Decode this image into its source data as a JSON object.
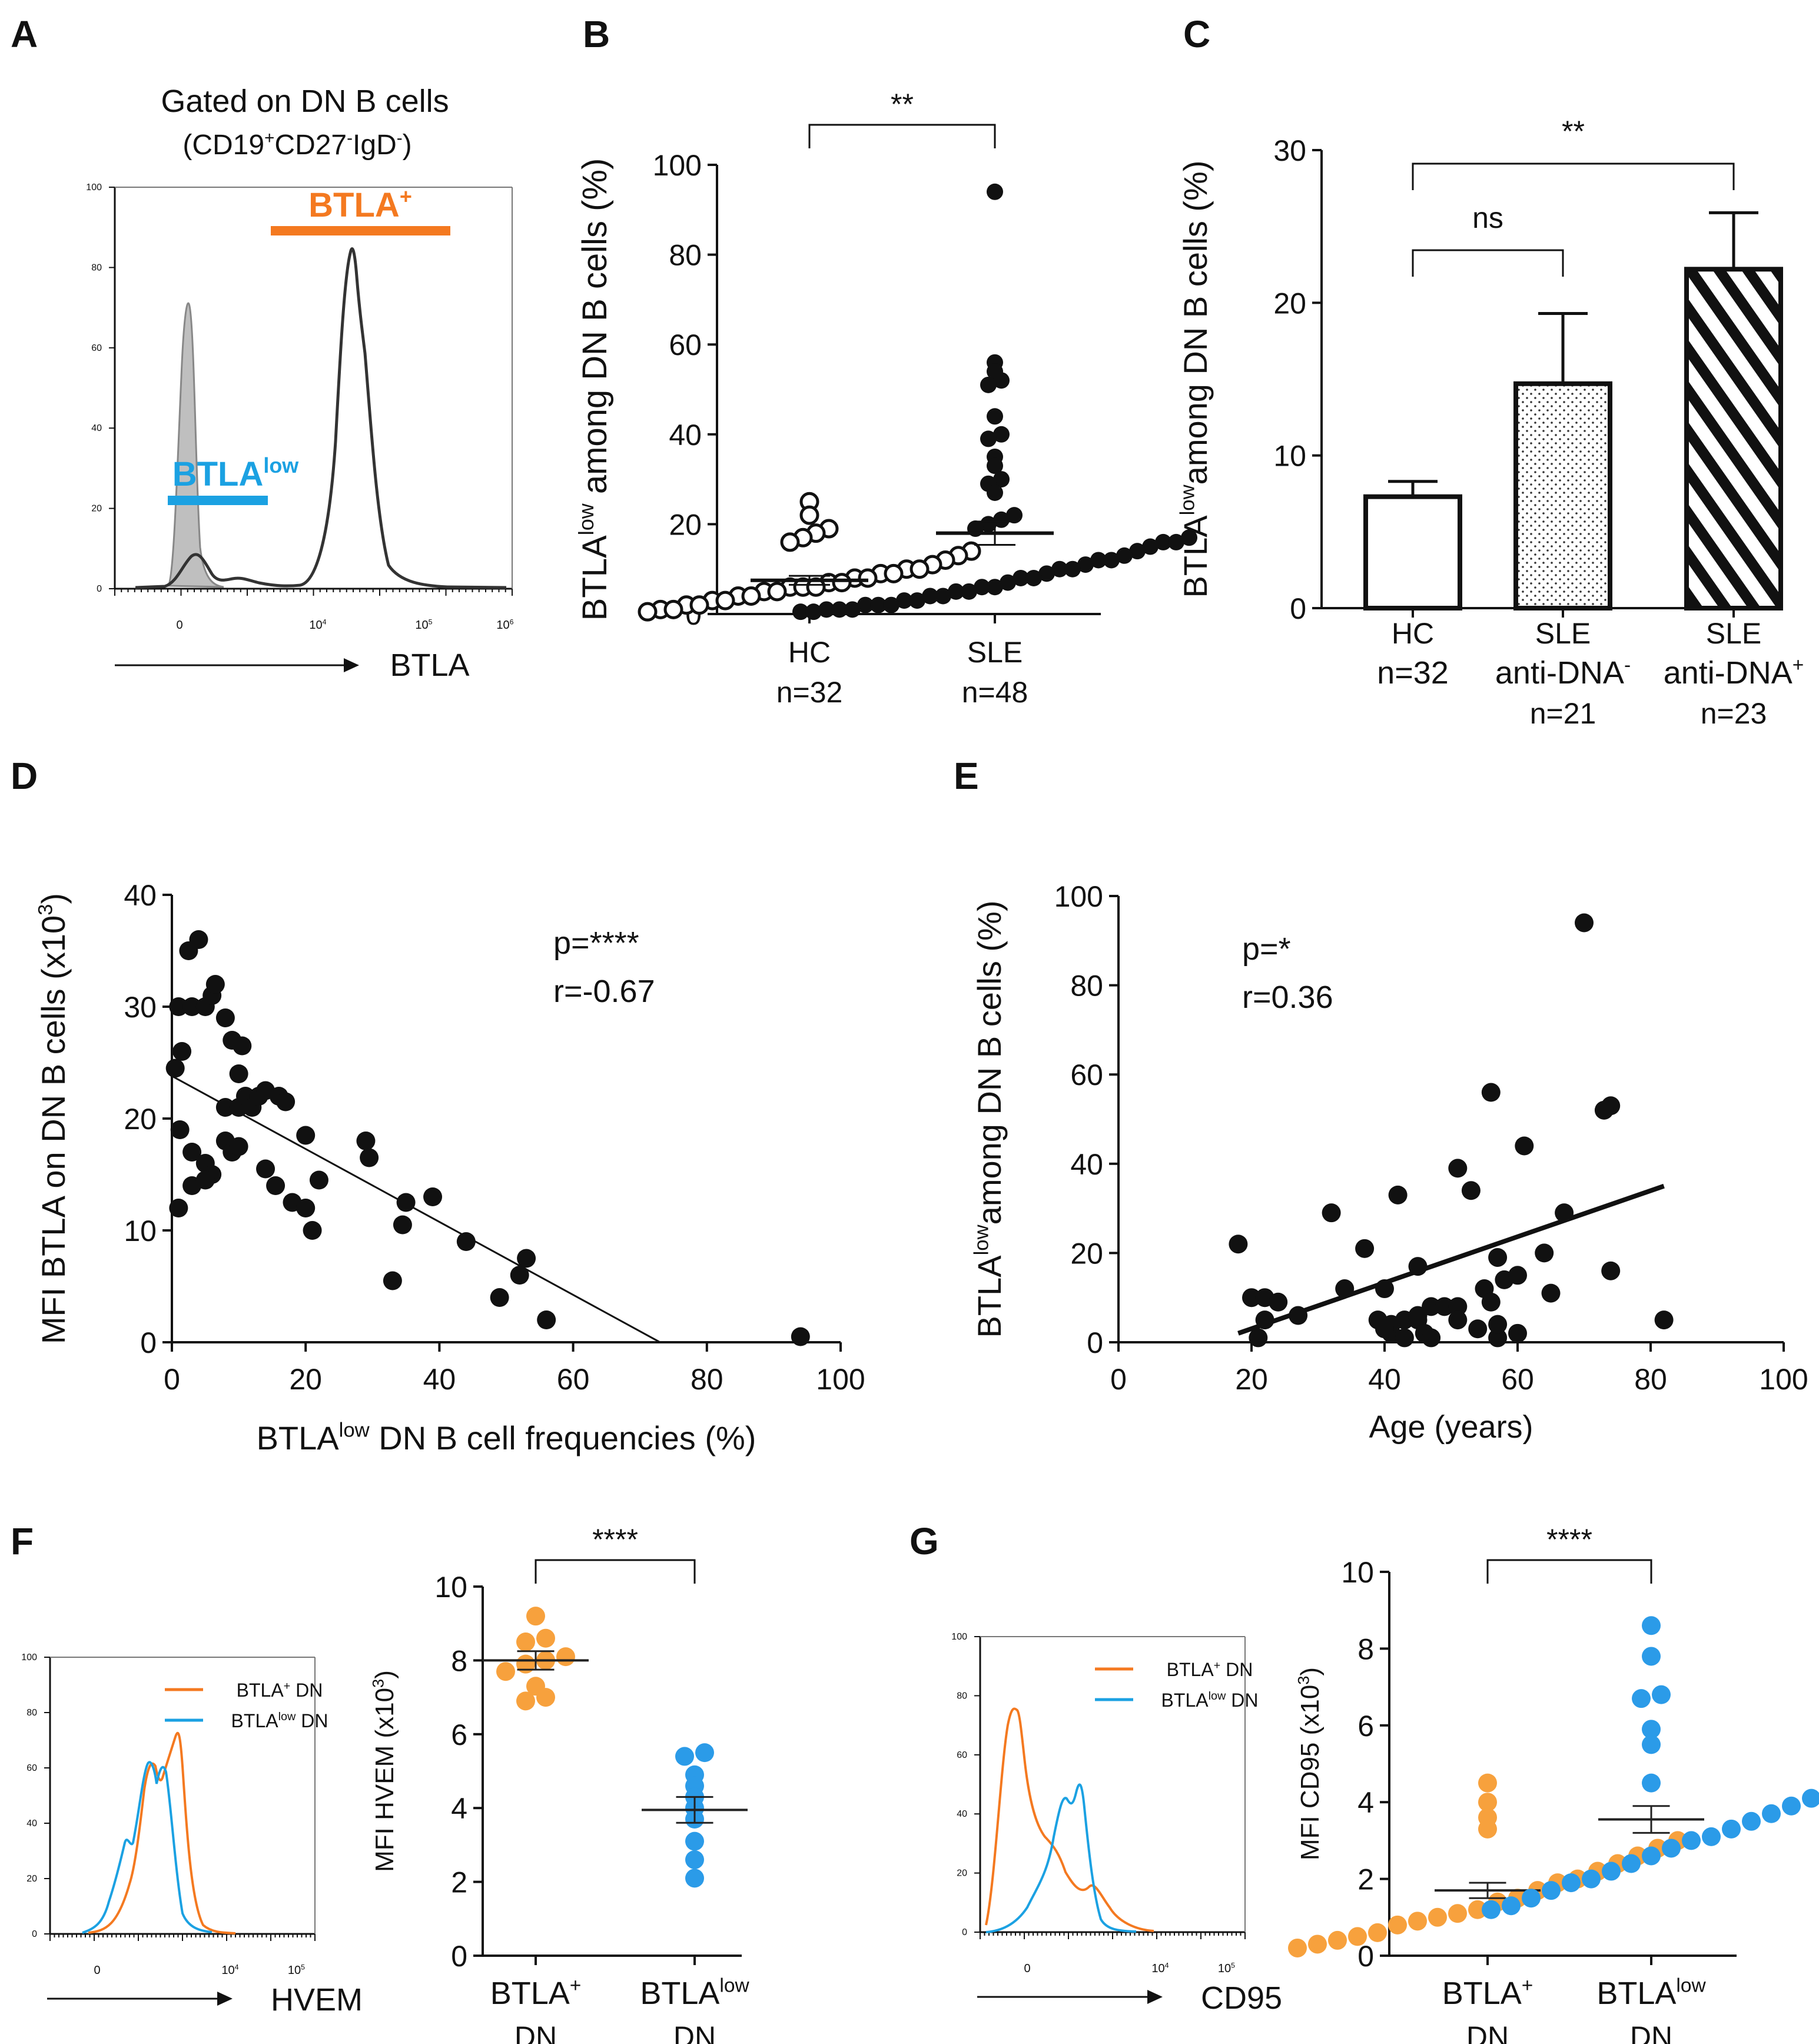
{
  "colors": {
    "orange": "#f47920",
    "blue": "#1ba1e2",
    "dot_orange": "#f7a13d",
    "dot_blue": "#2b9be8",
    "gray_fill": "#bfbfbf",
    "black": "#111111"
  },
  "chart_data": [
    {
      "panel": "A",
      "type": "histogram",
      "title_line1": "Gated on DN B cells",
      "title_line2": {
        "prefix": "(CD19",
        "sup1": "+",
        "mid1": "CD27",
        "sup2": "-",
        "mid2": "IgD",
        "sup3": "-",
        "suffix": ")"
      },
      "xlabel": "BTLA",
      "gates": [
        {
          "name": "BTLA+",
          "label": "BTLA",
          "sup": "+",
          "color": "#f47920"
        },
        {
          "name": "BTLAlow",
          "label": "BTLA",
          "sup": "low",
          "color": "#1ba1e2"
        }
      ],
      "y_ticks": [
        "0",
        "20",
        "40",
        "60",
        "80",
        "100"
      ],
      "x_ticks": [
        {
          "base": "0",
          "exp": ""
        },
        {
          "base": "10",
          "exp": "4"
        },
        {
          "base": "10",
          "exp": "5"
        },
        {
          "base": "10",
          "exp": "6"
        }
      ]
    },
    {
      "panel": "B",
      "type": "scatter",
      "ylabel": {
        "prefix": "BTLA",
        "sup": "low",
        "suffix": " among DN B cells (%)"
      },
      "ylim": [
        0,
        100
      ],
      "y_ticks": [
        "0",
        "20",
        "40",
        "60",
        "80",
        "100"
      ],
      "categories": [
        {
          "label": "HC",
          "n": "n=32",
          "mean": 7.5,
          "sem": 1.0,
          "values": [
            25,
            22,
            19,
            18,
            17,
            16,
            14,
            13,
            12,
            11,
            10,
            10,
            9,
            9,
            8,
            8,
            7,
            7,
            6,
            6,
            6,
            5,
            5,
            4,
            4,
            3,
            3,
            2,
            2,
            1,
            1,
            0.5
          ]
        },
        {
          "label": "SLE",
          "n": "n=48",
          "mean": 18,
          "sem": 2.6,
          "values": [
            94,
            56,
            54,
            52,
            51,
            44,
            40,
            39,
            35,
            33,
            30,
            29,
            27,
            22,
            21,
            20,
            19,
            17,
            16,
            16,
            15,
            14,
            13,
            12,
            12,
            11,
            10,
            10,
            9,
            8,
            8,
            7,
            6,
            6,
            5,
            5,
            4,
            4,
            3,
            3,
            2,
            2,
            2,
            1,
            1,
            1,
            0.5,
            0.5
          ]
        }
      ],
      "significance": "**"
    },
    {
      "panel": "C",
      "type": "bar",
      "ylabel": {
        "prefix": "BTLA",
        "sup": "low",
        "suffix": "among DN B cells (%)"
      },
      "ylim": [
        0,
        30
      ],
      "y_ticks": [
        "0",
        "10",
        "20",
        "30"
      ],
      "categories": [
        {
          "line1": "HC",
          "line2": "n=32",
          "line2sup": "",
          "line3": "",
          "value": 7.3,
          "err": 1.0,
          "fill": "open"
        },
        {
          "line1": "SLE",
          "line2": "anti-DNA",
          "line2sup": "-",
          "line3": "n=21",
          "value": 14.7,
          "err": 4.6,
          "fill": "dots"
        },
        {
          "line1": "SLE",
          "line2": "anti-DNA",
          "line2sup": "+",
          "line3": "n=23",
          "value": 22.2,
          "err": 3.7,
          "fill": "hatch"
        }
      ],
      "brackets": [
        {
          "from": 0,
          "to": 1,
          "label": "ns"
        },
        {
          "from": 0,
          "to": 2,
          "label": "**"
        }
      ]
    },
    {
      "panel": "D",
      "type": "scatter",
      "xlabel": {
        "prefix": "BTLA",
        "sup": "low",
        "suffix": " DN B cell frequencies (%)"
      },
      "ylabel": {
        "prefix": "MFI BTLA on DN B cells (x10",
        "sup": "3",
        "suffix": ")"
      },
      "xlim": [
        0,
        100
      ],
      "ylim": [
        0,
        40
      ],
      "x_ticks": [
        "0",
        "20",
        "40",
        "60",
        "80",
        "100"
      ],
      "y_ticks": [
        "0",
        "10",
        "20",
        "30",
        "40"
      ],
      "p_text": "p=****",
      "r_text": "r=-0.67",
      "fit": {
        "x0": 0,
        "y0": 23.8,
        "x1": 73,
        "y1": 0
      },
      "points": [
        [
          1,
          30
        ],
        [
          1.5,
          26
        ],
        [
          0.5,
          24.5
        ],
        [
          1.2,
          19
        ],
        [
          2.5,
          35
        ],
        [
          3,
          30
        ],
        [
          4,
          36
        ],
        [
          5,
          30
        ],
        [
          6,
          31
        ],
        [
          6.5,
          32
        ],
        [
          8,
          29
        ],
        [
          9,
          27
        ],
        [
          10.5,
          26.5
        ],
        [
          10,
          24
        ],
        [
          8,
          21
        ],
        [
          10,
          21
        ],
        [
          11,
          22
        ],
        [
          12,
          21
        ],
        [
          13,
          22
        ],
        [
          14,
          22.5
        ],
        [
          16,
          22
        ],
        [
          17,
          21.5
        ],
        [
          8,
          18
        ],
        [
          9,
          17
        ],
        [
          10,
          17.5
        ],
        [
          3,
          17
        ],
        [
          5,
          16
        ],
        [
          6,
          15
        ],
        [
          3,
          14
        ],
        [
          5,
          14.5
        ],
        [
          1,
          12
        ],
        [
          14,
          15.5
        ],
        [
          15.5,
          14
        ],
        [
          18,
          12.5
        ],
        [
          20,
          12
        ],
        [
          21,
          10
        ],
        [
          20,
          18.5
        ],
        [
          22,
          14.5
        ],
        [
          29,
          18
        ],
        [
          29.5,
          16.5
        ],
        [
          33,
          5.5
        ],
        [
          34.5,
          10.5
        ],
        [
          35,
          12.5
        ],
        [
          39,
          13
        ],
        [
          44,
          9
        ],
        [
          49,
          4
        ],
        [
          52,
          6
        ],
        [
          53,
          7.5
        ],
        [
          56,
          2
        ],
        [
          94,
          0.5
        ]
      ]
    },
    {
      "panel": "E",
      "type": "scatter",
      "xlabel": "Age (years)",
      "ylabel": {
        "prefix": "BTLA",
        "sup": "low",
        "suffix": "among DN B cells (%)"
      },
      "xlim": [
        0,
        100
      ],
      "ylim": [
        0,
        100
      ],
      "x_ticks": [
        "0",
        "20",
        "40",
        "60",
        "80",
        "100"
      ],
      "y_ticks": [
        "0",
        "20",
        "40",
        "60",
        "80",
        "100"
      ],
      "p_text": "p=*",
      "r_text": "r=0.36",
      "fit": {
        "x0": 18,
        "y0": 2,
        "x1": 82,
        "y1": 35
      },
      "points": [
        [
          70,
          94
        ],
        [
          56,
          56
        ],
        [
          74,
          53
        ],
        [
          73,
          52
        ],
        [
          61,
          44
        ],
        [
          51,
          39
        ],
        [
          53,
          34
        ],
        [
          42,
          33
        ],
        [
          32,
          29
        ],
        [
          67,
          29
        ],
        [
          37,
          21
        ],
        [
          18,
          22
        ],
        [
          64,
          20
        ],
        [
          57,
          19
        ],
        [
          45,
          17
        ],
        [
          58,
          14
        ],
        [
          60,
          15
        ],
        [
          74,
          16
        ],
        [
          34,
          12
        ],
        [
          40,
          12
        ],
        [
          55,
          12
        ],
        [
          65,
          11
        ],
        [
          20,
          10
        ],
        [
          22,
          10
        ],
        [
          24,
          9
        ],
        [
          27,
          6
        ],
        [
          22,
          5
        ],
        [
          39,
          5
        ],
        [
          43,
          5
        ],
        [
          45,
          5
        ],
        [
          47,
          8
        ],
        [
          49,
          8
        ],
        [
          51,
          8
        ],
        [
          56,
          9
        ],
        [
          41,
          2
        ],
        [
          46,
          2
        ],
        [
          43,
          1
        ],
        [
          54,
          3
        ],
        [
          57,
          1
        ],
        [
          21,
          1
        ],
        [
          82,
          5
        ],
        [
          41,
          4
        ],
        [
          45,
          6
        ],
        [
          57,
          4
        ],
        [
          51,
          5
        ],
        [
          40,
          3
        ],
        [
          47,
          1
        ],
        [
          60,
          2
        ]
      ]
    },
    {
      "panel": "F",
      "type": "histogram",
      "xlabel": "HVEM",
      "legend": [
        {
          "label": "BTLA",
          "sup": "+",
          "suffix": " DN",
          "color": "#f47920"
        },
        {
          "label": "BTLA",
          "sup": "low",
          "suffix": " DN",
          "color": "#1ba1e2"
        }
      ],
      "y_ticks": [
        "0",
        "20",
        "40",
        "60",
        "80",
        "100"
      ],
      "x_ticks": [
        {
          "base": "0",
          "exp": ""
        },
        {
          "base": "10",
          "exp": "4"
        },
        {
          "base": "10",
          "exp": "5"
        }
      ]
    },
    {
      "panel": "F2",
      "type": "scatter",
      "ylabel": {
        "prefix": "MFI HVEM (x10",
        "sup": "3",
        "suffix": ")"
      },
      "ylim": [
        0,
        10
      ],
      "y_ticks": [
        "0",
        "2",
        "4",
        "6",
        "8",
        "10"
      ],
      "categories": [
        {
          "line1": "BTLA",
          "sup": "+",
          "line2": "DN",
          "mean": 8.0,
          "sem": 0.25,
          "color": "#f7a13d",
          "values": [
            9.2,
            8.6,
            8.5,
            8.1,
            8.0,
            7.9,
            7.7,
            7.3,
            7.0,
            6.9
          ]
        },
        {
          "line1": "BTLA",
          "sup": "low",
          "line2": "DN",
          "mean": 3.95,
          "sem": 0.35,
          "color": "#2b9be8",
          "values": [
            5.5,
            5.4,
            4.9,
            4.6,
            4.3,
            4.0,
            3.7,
            3.1,
            2.6,
            2.1
          ]
        }
      ],
      "significance": "****"
    },
    {
      "panel": "G",
      "type": "histogram",
      "xlabel": "CD95",
      "legend": [
        {
          "label": "BTLA",
          "sup": "+",
          "suffix": " DN",
          "color": "#f47920"
        },
        {
          "label": "BTLA",
          "sup": "low",
          "suffix": " DN",
          "color": "#1ba1e2"
        }
      ],
      "y_ticks": [
        "0",
        "20",
        "40",
        "60",
        "80",
        "100"
      ],
      "x_ticks": [
        {
          "base": "0",
          "exp": ""
        },
        {
          "base": "10",
          "exp": "4"
        },
        {
          "base": "10",
          "exp": "5"
        }
      ]
    },
    {
      "panel": "G2",
      "type": "scatter",
      "ylabel": {
        "prefix": "MFI CD95 (x10",
        "sup": "3",
        "suffix": ")"
      },
      "ylim": [
        0,
        10
      ],
      "y_ticks": [
        "0",
        "2",
        "4",
        "6",
        "8",
        "10"
      ],
      "categories": [
        {
          "line1": "BTLA",
          "sup": "+",
          "line2": "DN",
          "mean": 1.7,
          "sem": 0.2,
          "color": "#f7a13d",
          "values": [
            4.5,
            4.0,
            3.6,
            3.3,
            3.0,
            2.8,
            2.6,
            2.4,
            2.2,
            2.0,
            1.9,
            1.7,
            1.5,
            1.4,
            1.2,
            1.1,
            1.0,
            0.9,
            0.8,
            0.6,
            0.5,
            0.4,
            0.3,
            0.2
          ]
        },
        {
          "line1": "BTLA",
          "sup": "low",
          "line2": "DN",
          "mean": 3.55,
          "sem": 0.35,
          "color": "#2b9be8",
          "values": [
            8.6,
            7.8,
            6.8,
            6.7,
            5.9,
            5.5,
            4.5,
            4.1,
            3.9,
            3.7,
            3.5,
            3.3,
            3.1,
            3.0,
            2.8,
            2.6,
            2.4,
            2.2,
            2.0,
            1.9,
            1.7,
            1.5,
            1.3,
            1.2
          ]
        }
      ],
      "significance": "****"
    }
  ]
}
